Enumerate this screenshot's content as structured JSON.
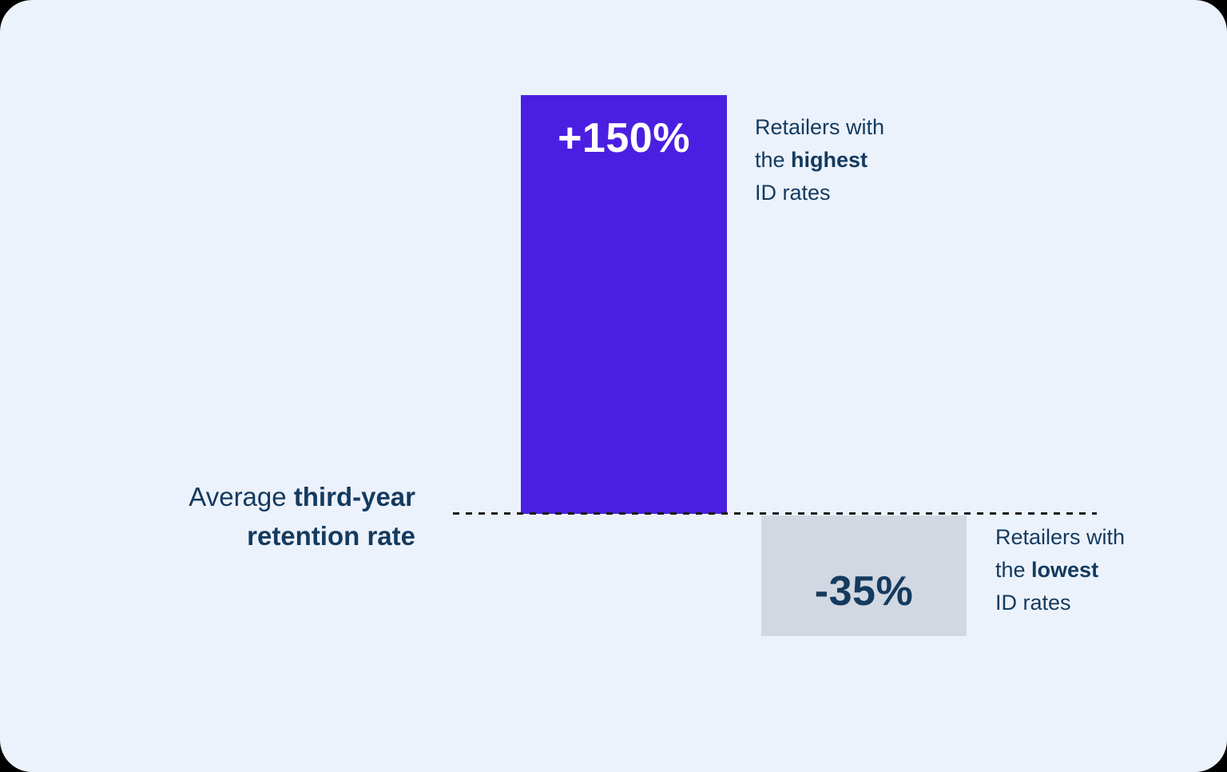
{
  "colors": {
    "panel_bg": "#ECF2FB",
    "bar_high": "#4B1FE1",
    "bar_low": "#D2D8E1",
    "text_navy": "#143A5F",
    "bar_high_label_text": "#FFFFFF",
    "baseline_dash": "#1C1C1C"
  },
  "axis_label": {
    "line1_regular": "Average ",
    "line1_bold": "third-year",
    "line2_bold": "retention rate"
  },
  "bars": {
    "high": {
      "label": "+150%"
    },
    "low": {
      "label": "-35%"
    }
  },
  "annotations": {
    "high": {
      "line1": "Retailers with",
      "line2_regular": "the ",
      "line2_bold": "highest",
      "line3": "ID rates"
    },
    "low": {
      "line1": "Retailers with",
      "line2_regular": "the ",
      "line2_bold": "lowest",
      "line3": "ID rates"
    }
  },
  "chart_data": {
    "type": "bar",
    "categories": [
      "Retailers with the highest ID rates",
      "Retailers with the lowest ID rates"
    ],
    "values": [
      150,
      -35
    ],
    "value_labels": [
      "+150%",
      "-35%"
    ],
    "unit": "%",
    "baseline_value": 0,
    "baseline_label": "Average third-year retention rate",
    "orientation": "vertical",
    "colors": [
      "#4B1FE1",
      "#D2D8E1"
    ],
    "legend_position": "none",
    "axes": "hidden except dashed zero baseline",
    "grid": false
  }
}
